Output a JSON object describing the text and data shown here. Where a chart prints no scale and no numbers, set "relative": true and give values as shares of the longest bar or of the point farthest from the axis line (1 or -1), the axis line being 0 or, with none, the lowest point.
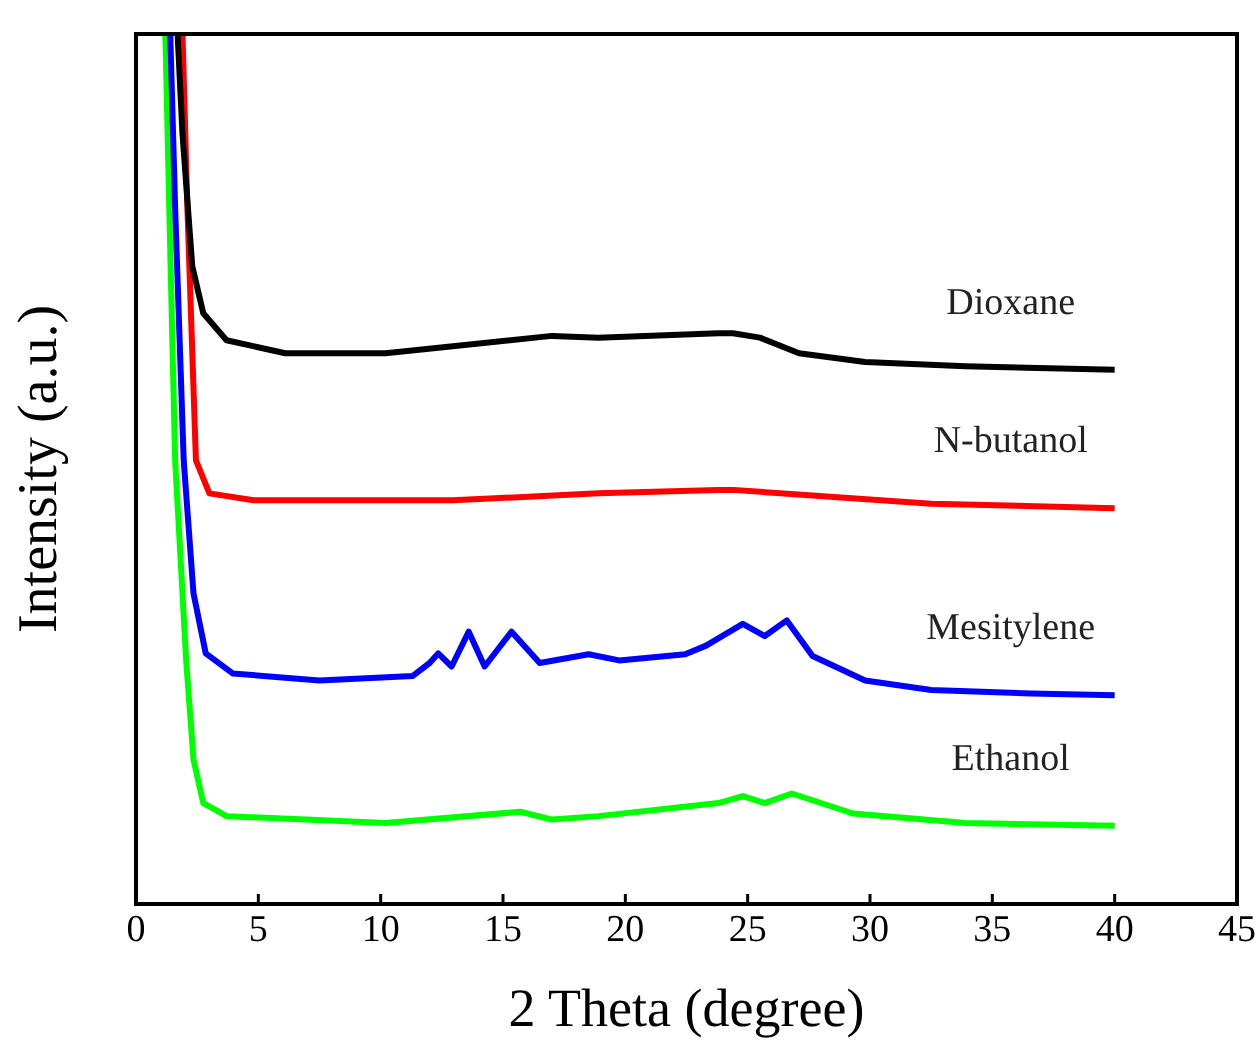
{
  "chart_data": {
    "type": "line",
    "xlabel": "2 Theta (degree)",
    "ylabel": "Intensity (a.u.)",
    "relative": true,
    "xlim": [
      0,
      45
    ],
    "xticks": [
      0,
      5,
      10,
      15,
      20,
      25,
      30,
      35,
      40,
      45
    ],
    "grid": false,
    "legend": false,
    "marker": "none",
    "line_style": "solid",
    "series": [
      {
        "name": "Dioxane",
        "color": "#000000",
        "x": [
          1.7,
          1.9,
          2.3,
          2.75,
          3.7,
          6.1,
          10.2,
          12.95,
          17.0,
          18.9,
          23.8,
          24.4,
          25.5,
          27.1,
          29.8,
          33.9,
          40
        ],
        "values": [
          1,
          0.885,
          0.733,
          0.679,
          0.648,
          0.633,
          0.633,
          0.641,
          0.653,
          0.651,
          0.656,
          0.656,
          0.651,
          0.633,
          0.623,
          0.618,
          0.614
        ]
      },
      {
        "name": "N-butanol",
        "color": "#ff0000",
        "x": [
          1.9,
          2.1,
          2.45,
          3.0,
          4.8,
          12.95,
          18.9,
          23.8,
          24.4,
          32.5,
          40
        ],
        "values": [
          1,
          0.8,
          0.51,
          0.472,
          0.464,
          0.464,
          0.472,
          0.476,
          0.476,
          0.46,
          0.455
        ]
      },
      {
        "name": "Mesitylene",
        "color": "#0000ff",
        "x": [
          1.4,
          1.6,
          1.95,
          2.35,
          2.85,
          3.95,
          7.5,
          11.3,
          12.0,
          12.35,
          12.9,
          13.6,
          14.25,
          15.35,
          16.5,
          18.5,
          19.75,
          22.45,
          23.3,
          24.8,
          25.7,
          26.6,
          27.65,
          29.8,
          32.5,
          36.6,
          40
        ],
        "values": [
          1,
          0.8,
          0.51,
          0.357,
          0.288,
          0.265,
          0.257,
          0.262,
          0.277,
          0.288,
          0.273,
          0.313,
          0.273,
          0.313,
          0.277,
          0.287,
          0.28,
          0.287,
          0.297,
          0.322,
          0.308,
          0.326,
          0.285,
          0.257,
          0.246,
          0.242,
          0.24
        ]
      },
      {
        "name": "Ethanol",
        "color": "#00ff00",
        "x": [
          1.2,
          1.4,
          1.6,
          2.05,
          2.35,
          2.75,
          3.7,
          10.2,
          15.7,
          17.0,
          18.9,
          23.8,
          24.8,
          25.7,
          26.8,
          29.3,
          33.9,
          40
        ],
        "values": [
          1,
          0.75,
          0.51,
          0.28,
          0.166,
          0.116,
          0.101,
          0.093,
          0.106,
          0.097,
          0.101,
          0.116,
          0.124,
          0.116,
          0.127,
          0.104,
          0.093,
          0.09
        ]
      }
    ]
  }
}
